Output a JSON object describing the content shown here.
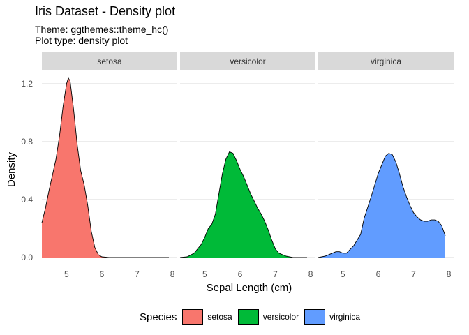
{
  "chart_data": {
    "type": "area",
    "title": "Iris Dataset - Density plot",
    "subtitle_lines": [
      "Theme: ggthemes::theme_hc()",
      "Plot type: density plot"
    ],
    "xlabel": "Sepal Length (cm)",
    "ylabel": "Density",
    "xlim": [
      4.3,
      7.9
    ],
    "ylim": [
      0,
      1.25
    ],
    "x_ticks": [
      5,
      6,
      7,
      8
    ],
    "y_ticks": [
      0.0,
      0.4,
      0.8,
      1.2
    ],
    "y_tick_labels": [
      "0.0",
      "0.4",
      "0.8",
      "1.2"
    ],
    "grid": "horizontal",
    "legend": {
      "title": "Species",
      "position": "bottom"
    },
    "series": [
      {
        "name": "setosa",
        "color": "#F8766D",
        "x": [
          4.3,
          4.4,
          4.5,
          4.6,
          4.7,
          4.8,
          4.9,
          5.0,
          5.05,
          5.1,
          5.2,
          5.3,
          5.4,
          5.5,
          5.6,
          5.7,
          5.8,
          5.9,
          6.0,
          6.2,
          6.5,
          7.0,
          7.5,
          7.9
        ],
        "y": [
          0.24,
          0.34,
          0.46,
          0.57,
          0.68,
          0.84,
          1.04,
          1.2,
          1.24,
          1.22,
          1.02,
          0.78,
          0.6,
          0.5,
          0.36,
          0.18,
          0.07,
          0.02,
          0.005,
          0.0,
          0.0,
          0.0,
          0.0,
          0.0
        ]
      },
      {
        "name": "versicolor",
        "color": "#00BA38",
        "x": [
          4.3,
          4.5,
          4.7,
          4.9,
          5.0,
          5.1,
          5.2,
          5.3,
          5.4,
          5.5,
          5.6,
          5.7,
          5.8,
          5.9,
          6.0,
          6.1,
          6.2,
          6.3,
          6.4,
          6.5,
          6.6,
          6.7,
          6.8,
          6.9,
          7.0,
          7.1,
          7.3,
          7.5,
          7.9
        ],
        "y": [
          0.0,
          0.005,
          0.03,
          0.09,
          0.14,
          0.2,
          0.23,
          0.3,
          0.44,
          0.58,
          0.68,
          0.73,
          0.72,
          0.67,
          0.61,
          0.56,
          0.5,
          0.44,
          0.39,
          0.34,
          0.3,
          0.25,
          0.19,
          0.12,
          0.06,
          0.03,
          0.01,
          0.0,
          0.0
        ]
      },
      {
        "name": "virginica",
        "color": "#619CFF",
        "x": [
          4.3,
          4.5,
          4.7,
          4.8,
          4.9,
          5.0,
          5.1,
          5.3,
          5.5,
          5.6,
          5.8,
          6.0,
          6.1,
          6.2,
          6.3,
          6.4,
          6.5,
          6.6,
          6.7,
          6.8,
          6.9,
          7.0,
          7.1,
          7.2,
          7.3,
          7.4,
          7.5,
          7.6,
          7.7,
          7.8,
          7.9
        ],
        "y": [
          0.0,
          0.01,
          0.03,
          0.04,
          0.04,
          0.03,
          0.03,
          0.08,
          0.16,
          0.27,
          0.42,
          0.58,
          0.64,
          0.7,
          0.72,
          0.71,
          0.66,
          0.58,
          0.49,
          0.42,
          0.36,
          0.31,
          0.28,
          0.26,
          0.25,
          0.25,
          0.26,
          0.26,
          0.25,
          0.22,
          0.15
        ]
      }
    ]
  }
}
